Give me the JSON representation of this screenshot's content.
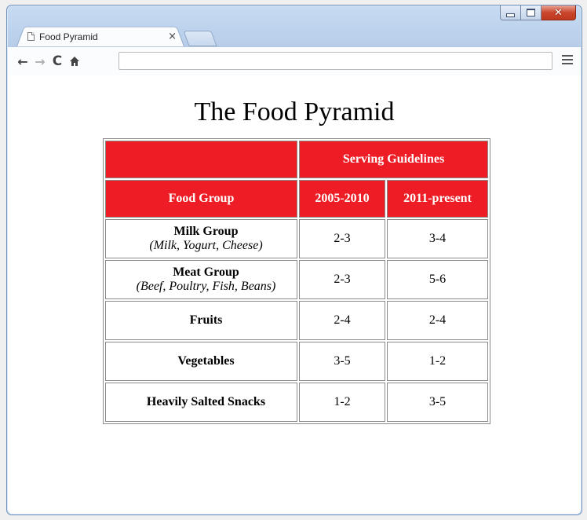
{
  "browser": {
    "tab_title": "Food Pyramid",
    "tab_close": "×",
    "address": ""
  },
  "page": {
    "title": "The Food Pyramid",
    "table": {
      "header_group": "Serving Guidelines",
      "header_food_group": "Food Group",
      "header_col2": "2005-2010",
      "header_col3": "2011-present",
      "rows": [
        {
          "name": "Milk Group",
          "desc": "(Milk, Yogurt, Cheese)",
          "v2005": "2-3",
          "v2011": "3-4"
        },
        {
          "name": "Meat Group",
          "desc": "(Beef, Poultry, Fish, Beans)",
          "v2005": "2-3",
          "v2011": "5-6"
        },
        {
          "name": "Fruits",
          "desc": "",
          "v2005": "2-4",
          "v2011": "2-4"
        },
        {
          "name": "Vegetables",
          "desc": "",
          "v2005": "3-5",
          "v2011": "1-2"
        },
        {
          "name": "Heavily Salted Snacks",
          "desc": "",
          "v2005": "1-2",
          "v2011": "3-5"
        }
      ]
    }
  },
  "colors": {
    "header_red": "#ee1c25",
    "window_frame": "#b4cbe8"
  },
  "icons": {
    "back": "arrow-left-icon",
    "forward": "arrow-right-icon",
    "reload": "reload-icon",
    "home": "home-icon",
    "menu": "hamburger-menu-icon",
    "tab": "page-icon"
  }
}
